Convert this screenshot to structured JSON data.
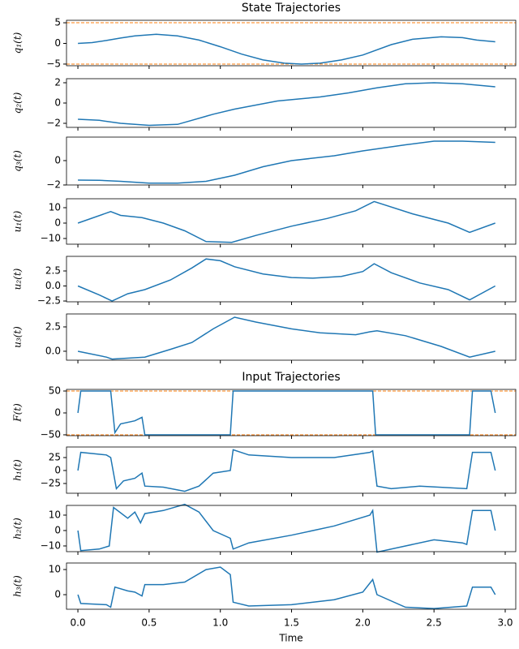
{
  "chart_data": [
    {
      "type": "line",
      "title": "State Trajectories",
      "ylabel": "q₁(t)",
      "color": "#1f77b4",
      "x": [
        0,
        0.1,
        0.2,
        0.3,
        0.4,
        0.55,
        0.7,
        0.85,
        1.0,
        1.15,
        1.3,
        1.45,
        1.57,
        1.7,
        1.85,
        2.0,
        2.2,
        2.35,
        2.55,
        2.7,
        2.8,
        2.93
      ],
      "values": [
        0,
        0.2,
        0.7,
        1.3,
        1.8,
        2.2,
        1.8,
        0.8,
        -0.8,
        -2.6,
        -4.0,
        -4.8,
        -5.0,
        -4.8,
        -4.0,
        -2.8,
        -0.3,
        1.0,
        1.6,
        1.4,
        0.8,
        0.4
      ],
      "xlim": [
        -0.08,
        3.074
      ],
      "ylim": [
        -5.4,
        5.6
      ],
      "yticks": [
        {
          "value": -5,
          "label": "−5"
        },
        0,
        5
      ],
      "hlines": [
        -5,
        5
      ],
      "hline_color": "#ff7f0e"
    },
    {
      "type": "line",
      "ylabel": "q₂(t)",
      "color": "#1f77b4",
      "x": [
        0,
        0.15,
        0.3,
        0.5,
        0.7,
        0.8,
        0.95,
        1.1,
        1.25,
        1.4,
        1.55,
        1.7,
        1.9,
        2.1,
        2.3,
        2.5,
        2.7,
        2.93
      ],
      "values": [
        -1.6,
        -1.7,
        -2.0,
        -2.2,
        -2.1,
        -1.7,
        -1.1,
        -0.6,
        -0.2,
        0.2,
        0.4,
        0.6,
        1.0,
        1.5,
        1.9,
        2.0,
        1.9,
        1.6
      ],
      "xlim": [
        -0.08,
        3.074
      ],
      "ylim": [
        -2.4,
        2.4
      ],
      "yticks": [
        {
          "value": -2,
          "label": "−2"
        },
        0,
        2
      ]
    },
    {
      "type": "line",
      "ylabel": "q₃(t)",
      "color": "#1f77b4",
      "x": [
        0,
        0.15,
        0.3,
        0.5,
        0.7,
        0.9,
        1.1,
        1.3,
        1.5,
        1.8,
        2.0,
        2.3,
        2.5,
        2.7,
        2.93
      ],
      "values": [
        -1.6,
        -1.62,
        -1.7,
        -1.85,
        -1.85,
        -1.7,
        -1.2,
        -0.5,
        0.0,
        0.4,
        0.8,
        1.3,
        1.6,
        1.6,
        1.5
      ],
      "xlim": [
        -0.08,
        3.074
      ],
      "ylim": [
        -2,
        1.93
      ],
      "yticks": [
        {
          "value": -2,
          "label": "−2"
        },
        0
      ]
    },
    {
      "type": "line",
      "ylabel": "u₁(t)",
      "color": "#1f77b4",
      "x": [
        0,
        0.23,
        0.3,
        0.45,
        0.6,
        0.75,
        0.9,
        1.08,
        1.25,
        1.5,
        1.75,
        1.95,
        2.08,
        2.35,
        2.6,
        2.75,
        2.93
      ],
      "values": [
        0,
        7.5,
        5,
        3.5,
        0,
        -5,
        -12,
        -12.5,
        -8,
        -2,
        3,
        8,
        14,
        6,
        0,
        -6,
        0
      ],
      "xlim": [
        -0.08,
        3.074
      ],
      "ylim": [
        -13.7,
        15.8
      ],
      "yticks": [
        {
          "value": -10,
          "label": "−10"
        },
        0,
        10
      ]
    },
    {
      "type": "line",
      "ylabel": "u₂(t)",
      "color": "#1f77b4",
      "x": [
        0,
        0.15,
        0.24,
        0.35,
        0.47,
        0.65,
        0.8,
        0.9,
        1.0,
        1.1,
        1.3,
        1.5,
        1.65,
        1.85,
        2.0,
        2.08,
        2.2,
        2.4,
        2.6,
        2.75,
        2.93
      ],
      "values": [
        0,
        -1.5,
        -2.5,
        -1.3,
        -0.6,
        1,
        3,
        4.5,
        4.2,
        3.2,
        2,
        1.4,
        1.3,
        1.6,
        2.4,
        3.7,
        2.2,
        0.5,
        -0.6,
        -2.3,
        0
      ],
      "xlim": [
        -0.08,
        3.074
      ],
      "ylim": [
        -2.63,
        4.93
      ],
      "yticks": [
        {
          "value": -2.5,
          "label": "−2.5"
        },
        {
          "value": 0,
          "label": "0.0"
        },
        2.5
      ]
    },
    {
      "type": "line",
      "ylabel": "u₃(t)",
      "color": "#1f77b4",
      "x": [
        0,
        0.2,
        0.24,
        0.47,
        0.65,
        0.8,
        0.95,
        1.1,
        1.25,
        1.5,
        1.7,
        1.95,
        2.05,
        2.1,
        2.3,
        2.55,
        2.75,
        2.93
      ],
      "values": [
        0,
        -0.6,
        -0.8,
        -0.6,
        0.2,
        0.9,
        2.3,
        3.5,
        3.0,
        2.3,
        1.9,
        1.7,
        2.0,
        2.1,
        1.6,
        0.5,
        -0.6,
        0
      ],
      "xlim": [
        -0.08,
        3.074
      ],
      "ylim": [
        -0.92,
        3.83
      ],
      "yticks": [
        {
          "value": 0,
          "label": "0.0"
        },
        2.5
      ]
    },
    {
      "type": "line",
      "title": "Input Trajectories",
      "ylabel": "F(t)",
      "color": "#1f77b4",
      "x": [
        0,
        0.02,
        0.23,
        0.26,
        0.3,
        0.4,
        0.45,
        0.47,
        1.07,
        1.09,
        2.07,
        2.09,
        2.75,
        2.77,
        2.9,
        2.93
      ],
      "values": [
        0,
        50,
        50,
        -45,
        -25,
        -18,
        -10,
        -50,
        -50,
        50,
        50,
        -50,
        -50,
        50,
        50,
        0
      ],
      "xlim": [
        -0.08,
        3.074
      ],
      "ylim": [
        -51.9,
        53.7
      ],
      "yticks": [
        {
          "value": -50,
          "label": "−50"
        },
        0,
        50
      ],
      "hlines": [
        -50,
        50
      ],
      "hline_color": "#ff7f0e"
    },
    {
      "type": "line",
      "ylabel": "h₁(t)",
      "color": "#1f77b4",
      "x": [
        0,
        0.02,
        0.2,
        0.23,
        0.27,
        0.32,
        0.4,
        0.45,
        0.47,
        0.6,
        0.75,
        0.85,
        0.95,
        1.07,
        1.09,
        1.2,
        1.5,
        1.8,
        2.05,
        2.07,
        2.1,
        2.2,
        2.4,
        2.73,
        2.77,
        2.9,
        2.93
      ],
      "values": [
        0,
        35,
        30,
        25,
        -35,
        -20,
        -15,
        -5,
        -30,
        -32,
        -40,
        -30,
        -5,
        0,
        40,
        30,
        25,
        25,
        35,
        38,
        -30,
        -35,
        -30,
        -35,
        35,
        35,
        0
      ],
      "xlim": [
        -0.08,
        3.074
      ],
      "ylim": [
        -43.8,
        45.3
      ],
      "yticks": [
        {
          "value": -25,
          "label": "−25"
        },
        0,
        25
      ]
    },
    {
      "type": "line",
      "ylabel": "h₂(t)",
      "color": "#1f77b4",
      "x": [
        0,
        0.02,
        0.15,
        0.22,
        0.25,
        0.35,
        0.4,
        0.44,
        0.47,
        0.6,
        0.75,
        0.85,
        0.95,
        1.07,
        1.09,
        1.2,
        1.5,
        1.8,
        2.05,
        2.07,
        2.1,
        2.3,
        2.5,
        2.7,
        2.73,
        2.77,
        2.9,
        2.93
      ],
      "values": [
        0,
        -13,
        -12,
        -10,
        15,
        8,
        12,
        5,
        11,
        13,
        17,
        12,
        0,
        -5,
        -12,
        -8,
        -3,
        3,
        10,
        13,
        -14,
        -10,
        -6,
        -8,
        -9,
        13,
        13,
        0
      ],
      "xlim": [
        -0.08,
        3.074
      ],
      "ylim": [
        -13.7,
        16.3
      ],
      "yticks": [
        {
          "value": -10,
          "label": "−10"
        },
        0,
        10
      ]
    },
    {
      "type": "line",
      "ylabel": "h₃(t)",
      "xlabel": "Time",
      "color": "#1f77b4",
      "x": [
        0,
        0.02,
        0.2,
        0.23,
        0.26,
        0.35,
        0.4,
        0.45,
        0.47,
        0.6,
        0.75,
        0.9,
        1.0,
        1.07,
        1.09,
        1.2,
        1.5,
        1.8,
        2.0,
        2.07,
        2.1,
        2.3,
        2.5,
        2.73,
        2.77,
        2.9,
        2.93
      ],
      "values": [
        0,
        -3.5,
        -4,
        -5,
        3,
        1.5,
        1,
        -0.5,
        4,
        4,
        5,
        10,
        11,
        8,
        -3,
        -4.5,
        -4,
        -2,
        1,
        6,
        0,
        -5,
        -5.5,
        -4.5,
        3,
        3,
        0
      ],
      "xlim": [
        -0.08,
        3.074
      ],
      "ylim": [
        -5.8,
        12.6
      ],
      "yticks": [
        0,
        10
      ],
      "xticks": [
        {
          "value": 0,
          "label": "0.0"
        },
        {
          "value": 0.5,
          "label": "0.5"
        },
        {
          "value": 1,
          "label": "1.0"
        },
        {
          "value": 1.5,
          "label": "1.5"
        },
        {
          "value": 2,
          "label": "2.0"
        },
        {
          "value": 2.5,
          "label": "2.5"
        },
        {
          "value": 3,
          "label": "3.0"
        }
      ]
    }
  ]
}
